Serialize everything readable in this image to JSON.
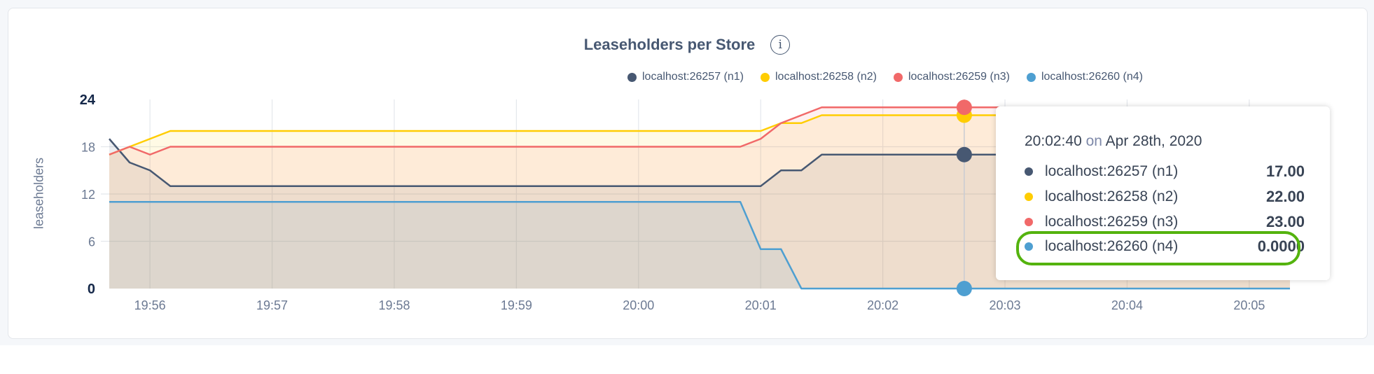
{
  "chart_data": {
    "type": "area",
    "title": "Leaseholders per Store",
    "ylabel": "leaseholders",
    "ylim": [
      0,
      24
    ],
    "yticks": [
      "0",
      "6",
      "12",
      "18",
      "24"
    ],
    "xticks": [
      "19:56",
      "19:57",
      "19:58",
      "19:59",
      "20:00",
      "20:01",
      "20:02",
      "20:03",
      "20:04",
      "20:05"
    ],
    "grid": true,
    "legend_position": "top-right",
    "x": [
      "19:55:40",
      "19:55:50",
      "19:56:00",
      "19:56:10",
      "19:56:20",
      "19:56:30",
      "19:56:40",
      "19:56:50",
      "19:57:00",
      "19:57:10",
      "19:57:20",
      "19:57:30",
      "19:57:40",
      "19:57:50",
      "19:58:00",
      "19:58:10",
      "19:58:20",
      "19:58:30",
      "19:58:40",
      "19:58:50",
      "19:59:00",
      "19:59:10",
      "19:59:20",
      "19:59:30",
      "19:59:40",
      "19:59:50",
      "20:00:00",
      "20:00:10",
      "20:00:20",
      "20:00:30",
      "20:00:40",
      "20:00:50",
      "20:01:00",
      "20:01:10",
      "20:01:20",
      "20:01:30",
      "20:01:40",
      "20:01:50",
      "20:02:00",
      "20:02:10",
      "20:02:20",
      "20:02:30",
      "20:02:40",
      "20:02:50",
      "20:03:00",
      "20:03:10",
      "20:03:20",
      "20:03:30",
      "20:03:40",
      "20:03:50",
      "20:04:00",
      "20:04:10",
      "20:04:20",
      "20:04:30",
      "20:04:40",
      "20:04:50",
      "20:05:00",
      "20:05:10",
      "20:05:20"
    ],
    "series": [
      {
        "name": "localhost:26257 (n1)",
        "color": "#475872",
        "values": [
          19,
          16,
          15,
          13,
          13,
          13,
          13,
          13,
          13,
          13,
          13,
          13,
          13,
          13,
          13,
          13,
          13,
          13,
          13,
          13,
          13,
          13,
          13,
          13,
          13,
          13,
          13,
          13,
          13,
          13,
          13,
          13,
          13,
          15,
          15,
          17,
          17,
          17,
          17,
          17,
          17,
          17,
          17,
          17,
          17,
          17,
          17,
          17,
          17,
          17,
          17,
          17,
          17,
          17,
          17,
          17,
          17,
          17,
          17
        ]
      },
      {
        "name": "localhost:26258 (n2)",
        "color": "#ffcd02",
        "values": [
          17,
          18,
          19,
          20,
          20,
          20,
          20,
          20,
          20,
          20,
          20,
          20,
          20,
          20,
          20,
          20,
          20,
          20,
          20,
          20,
          20,
          20,
          20,
          20,
          20,
          20,
          20,
          20,
          20,
          20,
          20,
          20,
          20,
          21,
          21,
          22,
          22,
          22,
          22,
          22,
          22,
          22,
          22,
          22,
          22,
          22,
          22,
          22,
          22,
          22,
          22,
          22,
          22,
          22,
          22,
          22,
          22,
          22,
          22
        ]
      },
      {
        "name": "localhost:26259 (n3)",
        "color": "#f16969",
        "values": [
          17,
          18,
          17,
          18,
          18,
          18,
          18,
          18,
          18,
          18,
          18,
          18,
          18,
          18,
          18,
          18,
          18,
          18,
          18,
          18,
          18,
          18,
          18,
          18,
          18,
          18,
          18,
          18,
          18,
          18,
          18,
          18,
          19,
          21,
          22,
          23,
          23,
          23,
          23,
          23,
          23,
          23,
          23,
          23,
          23,
          23,
          23,
          23,
          23,
          23,
          23,
          23,
          23,
          23,
          23,
          23,
          23,
          23,
          23
        ]
      },
      {
        "name": "localhost:26260 (n4)",
        "color": "#4e9fd1",
        "values": [
          11,
          11,
          11,
          11,
          11,
          11,
          11,
          11,
          11,
          11,
          11,
          11,
          11,
          11,
          11,
          11,
          11,
          11,
          11,
          11,
          11,
          11,
          11,
          11,
          11,
          11,
          11,
          11,
          11,
          11,
          11,
          11,
          5,
          5,
          0,
          0,
          0,
          0,
          0,
          0,
          0,
          0,
          0,
          0,
          0,
          0,
          0,
          0,
          0,
          0,
          0,
          0,
          0,
          0,
          0,
          0,
          0,
          0,
          0
        ]
      }
    ]
  },
  "tooltip": {
    "time": "20:02:40",
    "on": "on",
    "date": "Apr 28th, 2020",
    "hover_x": "20:02:40",
    "highlighted_series": "localhost:26260 (n4)",
    "rows": [
      {
        "label": "localhost:26257 (n1)",
        "value": "17.00",
        "color": "#475872"
      },
      {
        "label": "localhost:26258 (n2)",
        "value": "22.00",
        "color": "#ffcd02"
      },
      {
        "label": "localhost:26259 (n3)",
        "value": "23.00",
        "color": "#f16969"
      },
      {
        "label": "localhost:26260 (n4)",
        "value": "0.0000",
        "color": "#4e9fd1"
      }
    ]
  },
  "info_icon": "info-circle-icon",
  "info_glyph": "i",
  "highlight_color": "#54b30e"
}
